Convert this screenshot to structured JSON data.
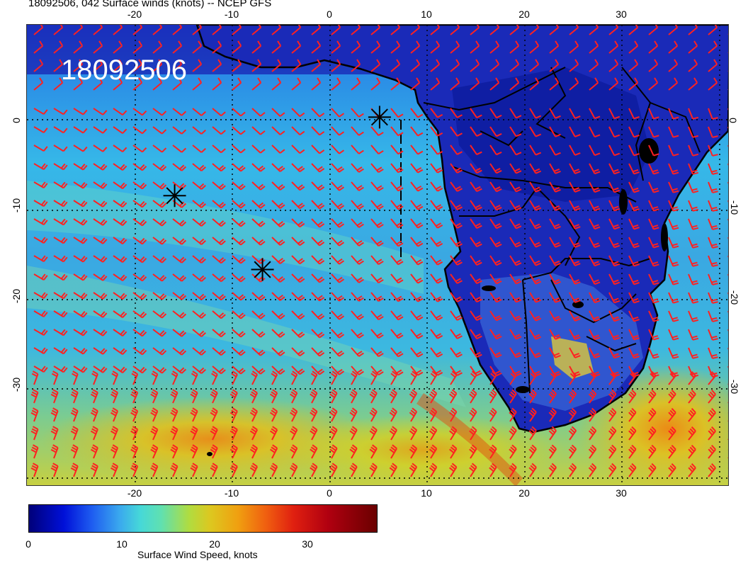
{
  "header": {
    "title": "18092506, 042 Surface winds (knots) -- NCEP GFS"
  },
  "map": {
    "stamp": "18092506",
    "lon_ticks": [
      "-20",
      "-10",
      "0",
      "10",
      "20",
      "30"
    ],
    "lat_ticks": [
      "0",
      "-10",
      "-20",
      "-30"
    ],
    "barb_color": "#ff2020",
    "storm_markers": [
      {
        "lon": -14.5,
        "lat": -8.5
      },
      {
        "lon": -5.5,
        "lat": -16.5
      },
      {
        "lon": 6.5,
        "lat": 0
      }
    ]
  },
  "colorbar": {
    "ticks": [
      "0",
      "10",
      "20",
      "30"
    ],
    "label": "Surface Wind Speed, knots"
  }
}
